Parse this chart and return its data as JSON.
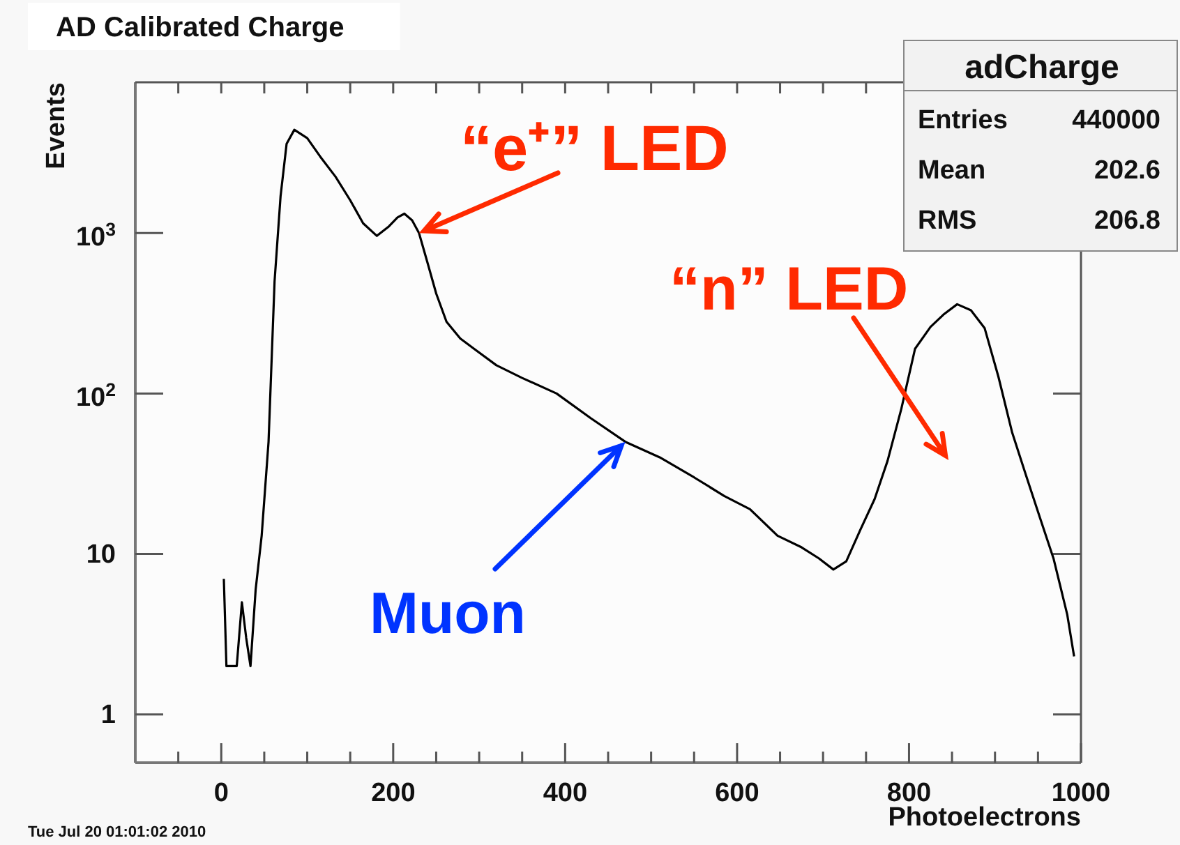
{
  "chart_data": {
    "type": "line",
    "title": "AD Calibrated Charge",
    "xlabel": "Photoelectrons",
    "ylabel": "Events",
    "log": "y",
    "xlim": [
      -100,
      1000
    ],
    "ylim": [
      0.5,
      8700
    ],
    "xticks": [
      {
        "value": -50,
        "label": null
      },
      0,
      {
        "value": 50,
        "label": null
      },
      {
        "value": 100,
        "label": null
      },
      {
        "value": 150,
        "label": null
      },
      200,
      {
        "value": 250,
        "label": null
      },
      {
        "value": 300,
        "label": null
      },
      {
        "value": 350,
        "label": null
      },
      400,
      {
        "value": 450,
        "label": null
      },
      {
        "value": 500,
        "label": null
      },
      {
        "value": 550,
        "label": null
      },
      600,
      {
        "value": 650,
        "label": null
      },
      {
        "value": 700,
        "label": null
      },
      {
        "value": 750,
        "label": null
      },
      800,
      {
        "value": 850,
        "label": null
      },
      {
        "value": 900,
        "label": null
      },
      {
        "value": 950,
        "label": null
      },
      1000
    ],
    "yticks": [
      1,
      10,
      {
        "value": 100,
        "label": "10$^{2}$"
      },
      {
        "value": 1000,
        "label": "10$^{3}$"
      }
    ],
    "series": [
      {
        "color": "#000000",
        "x": [
          3,
          6,
          12,
          18,
          24,
          29,
          34,
          40,
          47,
          55,
          62,
          69,
          76,
          85,
          100,
          115,
          133,
          150,
          165,
          181,
          195,
          205,
          213,
          222,
          230,
          240,
          250,
          262,
          278,
          294,
          320,
          350,
          390,
          430,
          470,
          510,
          550,
          585,
          615,
          647,
          675,
          695,
          712,
          727,
          743,
          760,
          775,
          791,
          807,
          825,
          840,
          856,
          872,
          888,
          904,
          920,
          936,
          952,
          968,
          984,
          992
        ],
        "values": [
          7,
          2,
          2,
          2,
          5,
          3,
          2,
          6,
          13,
          50,
          500,
          1700,
          3600,
          4400,
          3900,
          3000,
          2240,
          1600,
          1150,
          960,
          1100,
          1250,
          1320,
          1200,
          1000,
          650,
          420,
          280,
          220,
          190,
          150,
          125,
          100,
          70,
          50,
          40,
          30,
          23,
          19,
          13,
          11,
          9.4,
          8,
          9,
          14,
          22,
          38,
          80,
          190,
          260,
          310,
          360,
          330,
          255,
          127,
          57,
          31,
          17,
          9.4,
          4.2,
          2.3
        ]
      }
    ],
    "annotations": [
      "Tue Jul 20 01:01:02 2010",
      "adCharge",
      "Entries",
      "440000",
      "Mean",
      "202.6",
      "RMS",
      "206.8",
      {
        "text": "“e⁺” LED",
        "x": 230,
        "y": 1000
      },
      "“n” LED",
      {
        "text": "Muon",
        "x": 470,
        "y": 50
      }
    ]
  }
}
